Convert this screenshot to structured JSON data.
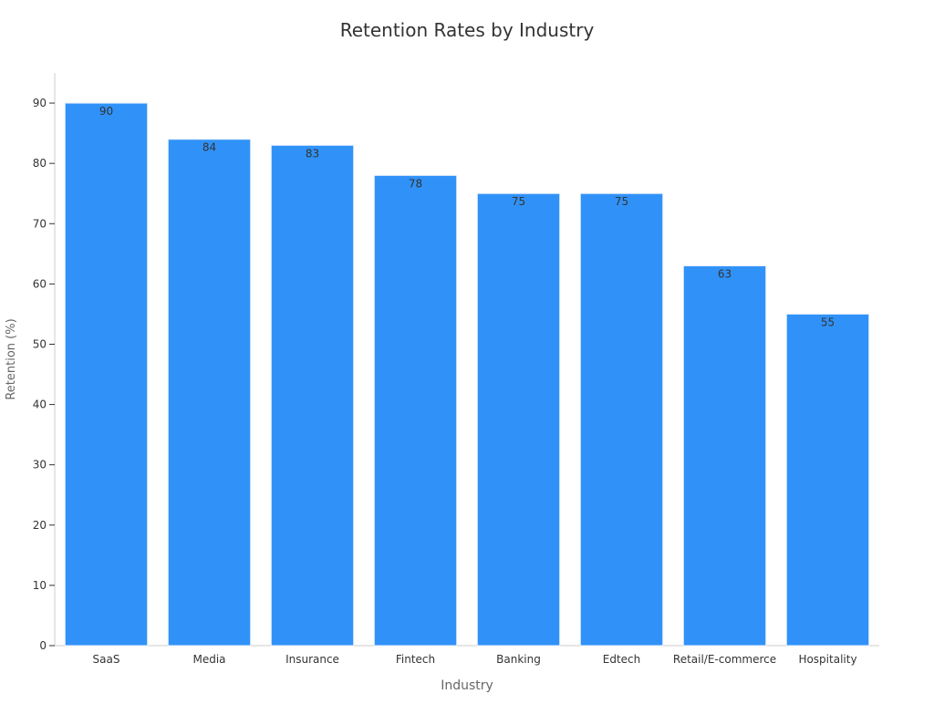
{
  "chart_data": {
    "type": "bar",
    "title": "Retention Rates by Industry",
    "xlabel": "Industry",
    "ylabel": "Retention (%)",
    "categories": [
      "SaaS",
      "Media",
      "Insurance",
      "Fintech",
      "Banking",
      "Edtech",
      "Retail/E-commerce",
      "Hospitality"
    ],
    "values": [
      90,
      84,
      83,
      78,
      75,
      75,
      63,
      55
    ],
    "ylim": [
      0,
      95
    ],
    "yticks": [
      0,
      10,
      20,
      30,
      40,
      50,
      60,
      70,
      80,
      90
    ],
    "bar_color": "#3092f8",
    "grid": false,
    "data_labels": true
  }
}
